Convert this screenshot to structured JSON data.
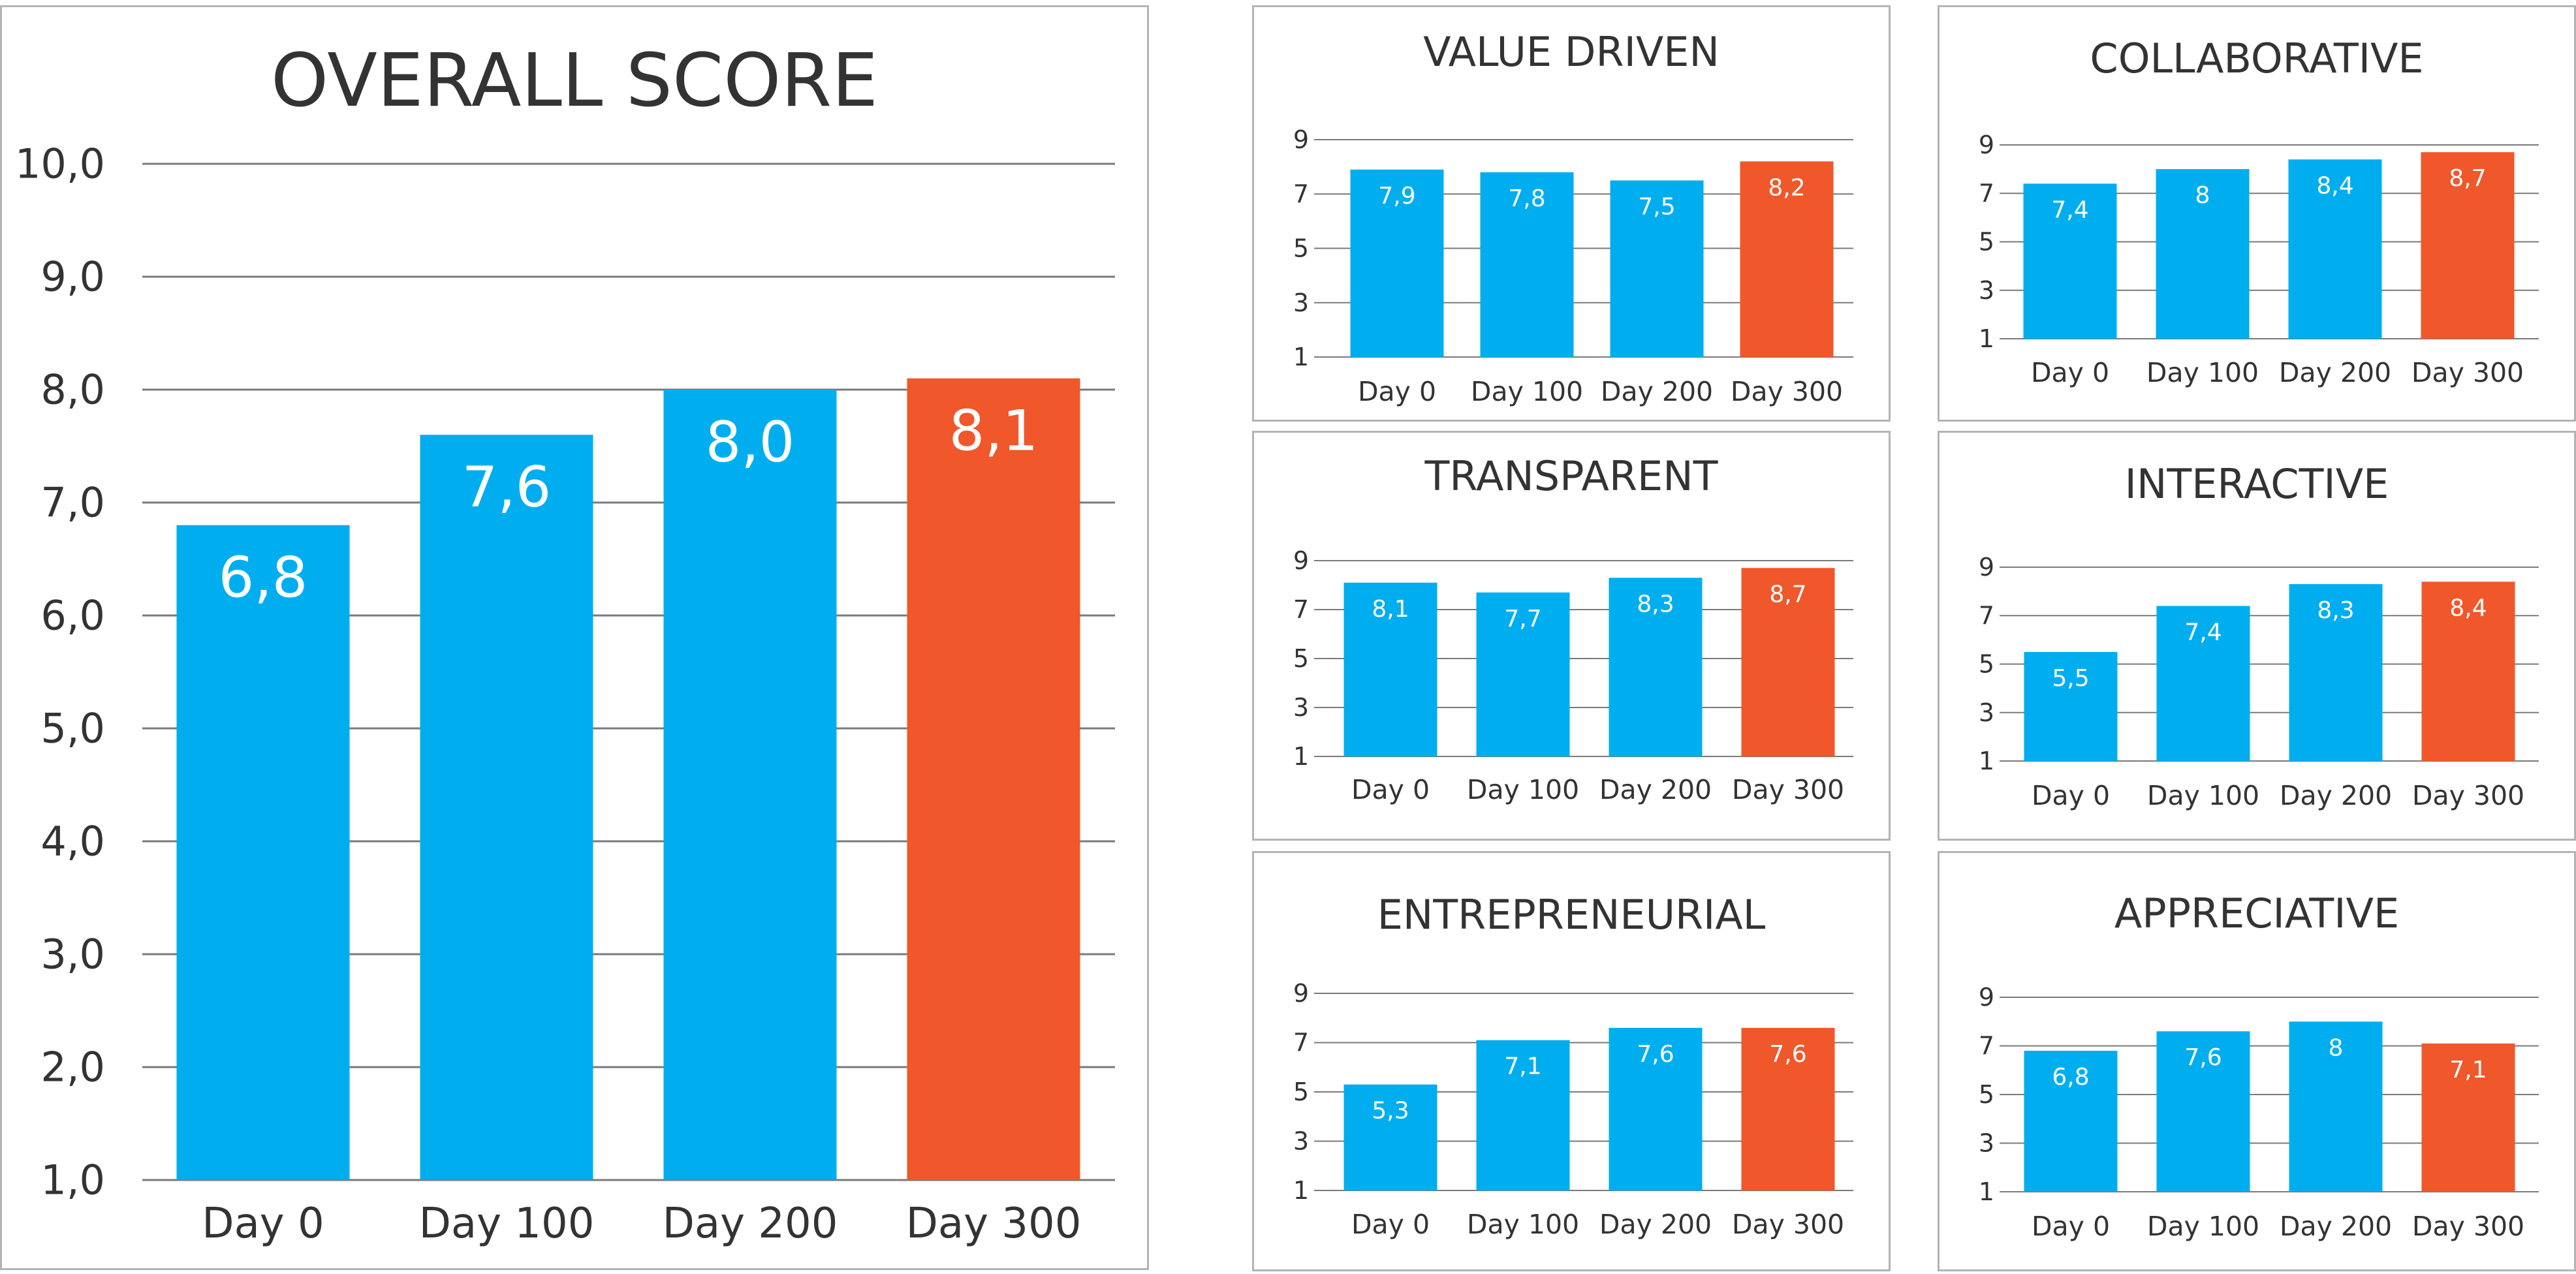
{
  "colors": {
    "primary": "#00aeef",
    "highlight": "#f0572a",
    "grid": "#7a7a7a",
    "text": "#333333",
    "label": "#ffffff"
  },
  "chart_data": [
    {
      "type": "bar",
      "title": "OVERALL SCORE",
      "categories": [
        "Day 0",
        "Day 100",
        "Day 200",
        "Day 300"
      ],
      "values": [
        6.8,
        7.6,
        8.0,
        8.1
      ],
      "data_labels": [
        "6,8",
        "7,6",
        "8,0",
        "8,1"
      ],
      "highlight_index": 3,
      "ylim": [
        1,
        10
      ],
      "yticks": [
        1,
        2,
        3,
        4,
        5,
        6,
        7,
        8,
        9,
        10
      ],
      "ytick_labels": [
        "1,0",
        "2,0",
        "3,0",
        "4,0",
        "5,0",
        "6,0",
        "7,0",
        "8,0",
        "9,0",
        "10,0"
      ],
      "grid": true
    },
    {
      "type": "bar",
      "title": "VALUE DRIVEN",
      "categories": [
        "Day 0",
        "Day 100",
        "Day 200",
        "Day 300"
      ],
      "values": [
        7.9,
        7.8,
        7.5,
        8.2
      ],
      "data_labels": [
        "7,9",
        "7,8",
        "7,5",
        "8,2"
      ],
      "highlight_index": 3,
      "ylim": [
        1,
        9
      ],
      "yticks": [
        1,
        3,
        5,
        7,
        9
      ],
      "ytick_labels": [
        "1",
        "3",
        "5",
        "7",
        "9"
      ],
      "grid": true
    },
    {
      "type": "bar",
      "title": "COLLABORATIVE",
      "categories": [
        "Day 0",
        "Day 100",
        "Day 200",
        "Day 300"
      ],
      "values": [
        7.4,
        8,
        8.4,
        8.7
      ],
      "data_labels": [
        "7,4",
        "8",
        "8,4",
        "8,7"
      ],
      "highlight_index": 3,
      "ylim": [
        1,
        9
      ],
      "yticks": [
        1,
        3,
        5,
        7,
        9
      ],
      "ytick_labels": [
        "1",
        "3",
        "5",
        "7",
        "9"
      ],
      "grid": true
    },
    {
      "type": "bar",
      "title": "TRANSPARENT",
      "categories": [
        "Day 0",
        "Day 100",
        "Day 200",
        "Day 300"
      ],
      "values": [
        8.1,
        7.7,
        8.3,
        8.7
      ],
      "data_labels": [
        "8,1",
        "7,7",
        "8,3",
        "8,7"
      ],
      "highlight_index": 3,
      "ylim": [
        1,
        9
      ],
      "yticks": [
        1,
        3,
        5,
        7,
        9
      ],
      "ytick_labels": [
        "1",
        "3",
        "5",
        "7",
        "9"
      ],
      "grid": true
    },
    {
      "type": "bar",
      "title": "INTERACTIVE",
      "categories": [
        "Day 0",
        "Day 100",
        "Day 200",
        "Day 300"
      ],
      "values": [
        5.5,
        7.4,
        8.3,
        8.4
      ],
      "data_labels": [
        "5,5",
        "7,4",
        "8,3",
        "8,4"
      ],
      "highlight_index": 3,
      "ylim": [
        1,
        9
      ],
      "yticks": [
        1,
        3,
        5,
        7,
        9
      ],
      "ytick_labels": [
        "1",
        "3",
        "5",
        "7",
        "9"
      ],
      "grid": true
    },
    {
      "type": "bar",
      "title": "ENTREPRENEURIAL",
      "categories": [
        "Day 0",
        "Day 100",
        "Day 200",
        "Day 300"
      ],
      "values": [
        5.3,
        7.1,
        7.6,
        7.6
      ],
      "data_labels": [
        "5,3",
        "7,1",
        "7,6",
        "7,6"
      ],
      "highlight_index": 3,
      "ylim": [
        1,
        9
      ],
      "yticks": [
        1,
        3,
        5,
        7,
        9
      ],
      "ytick_labels": [
        "1",
        "3",
        "5",
        "7",
        "9"
      ],
      "grid": true
    },
    {
      "type": "bar",
      "title": "APPRECIATIVE",
      "categories": [
        "Day 0",
        "Day 100",
        "Day 200",
        "Day 300"
      ],
      "values": [
        6.8,
        7.6,
        8,
        7.1
      ],
      "data_labels": [
        "6,8",
        "7,6",
        "8",
        "7,1"
      ],
      "highlight_index": 3,
      "ylim": [
        1,
        9
      ],
      "yticks": [
        1,
        3,
        5,
        7,
        9
      ],
      "ytick_labels": [
        "1",
        "3",
        "5",
        "7",
        "9"
      ],
      "grid": true
    }
  ]
}
